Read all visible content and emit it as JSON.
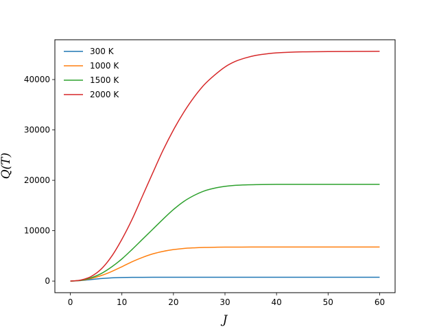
{
  "chart_data": {
    "type": "line",
    "title": "",
    "xlabel": "J",
    "ylabel": "Q(T)",
    "xlim": [
      -3,
      63
    ],
    "ylim": [
      -2300,
      47900
    ],
    "xticks": [
      0,
      10,
      20,
      30,
      40,
      50,
      60
    ],
    "yticks": [
      0,
      10000,
      20000,
      30000,
      40000
    ],
    "legend_placement": "top-left",
    "grid": false,
    "series": [
      {
        "name": "300 K",
        "color": "#1f77b4",
        "x": [
          0,
          2,
          4,
          6,
          8,
          10,
          12,
          14,
          16,
          18,
          20,
          25,
          30,
          35,
          40,
          45,
          50,
          55,
          60
        ],
        "values": [
          0,
          100,
          300,
          500,
          640,
          710,
          740,
          750,
          755,
          758,
          760,
          760,
          760,
          760,
          760,
          760,
          760,
          760,
          760
        ]
      },
      {
        "name": "1000 K",
        "color": "#ff7f0e",
        "x": [
          0,
          2,
          4,
          6,
          8,
          10,
          12,
          14,
          16,
          18,
          20,
          22,
          24,
          26,
          28,
          30,
          35,
          40,
          45,
          50,
          55,
          60
        ],
        "values": [
          0,
          130,
          500,
          1100,
          1900,
          2850,
          3850,
          4700,
          5400,
          5900,
          6250,
          6480,
          6600,
          6680,
          6720,
          6740,
          6760,
          6760,
          6760,
          6760,
          6760,
          6760
        ]
      },
      {
        "name": "1500 K",
        "color": "#2ca02c",
        "x": [
          0,
          2,
          4,
          6,
          8,
          10,
          12,
          14,
          16,
          18,
          20,
          22,
          24,
          26,
          28,
          30,
          32,
          34,
          36,
          40,
          45,
          50,
          55,
          60
        ],
        "values": [
          0,
          150,
          650,
          1500,
          2800,
          4400,
          6300,
          8300,
          10300,
          12300,
          14200,
          15800,
          17000,
          17900,
          18450,
          18800,
          19000,
          19100,
          19150,
          19200,
          19200,
          19200,
          19200,
          19200
        ]
      },
      {
        "name": "2000 K",
        "color": "#d62728",
        "x": [
          0,
          2,
          4,
          6,
          8,
          10,
          12,
          14,
          16,
          18,
          20,
          22,
          24,
          26,
          28,
          30,
          32,
          34,
          36,
          38,
          40,
          45,
          50,
          55,
          60
        ],
        "values": [
          0,
          200,
          900,
          2400,
          4900,
          8300,
          12300,
          16900,
          21500,
          26000,
          30000,
          33500,
          36500,
          39000,
          40900,
          42500,
          43600,
          44300,
          44800,
          45100,
          45300,
          45500,
          45550,
          45580,
          45600
        ]
      }
    ]
  }
}
